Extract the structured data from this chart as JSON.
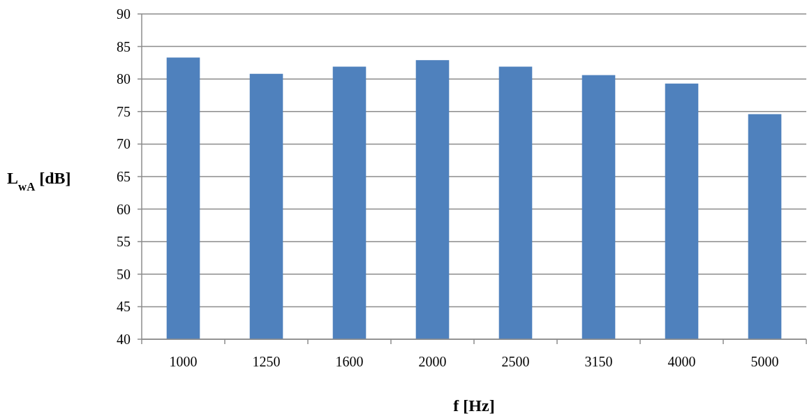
{
  "chart_data": {
    "type": "bar",
    "xlabel": "f [Hz]",
    "ylabel": "L$_{wA}$ [dB]",
    "categories": [
      "1000",
      "1250",
      "1600",
      "2000",
      "2500",
      "3150",
      "4000",
      "5000"
    ],
    "values": [
      83.3,
      80.8,
      81.9,
      82.9,
      81.9,
      80.6,
      79.3,
      74.6
    ],
    "color": "#4f81bd",
    "ylim": [
      40,
      90
    ],
    "yticks": [
      40,
      45,
      50,
      55,
      60,
      65,
      70,
      75,
      80,
      85,
      90
    ],
    "grid": "y"
  }
}
